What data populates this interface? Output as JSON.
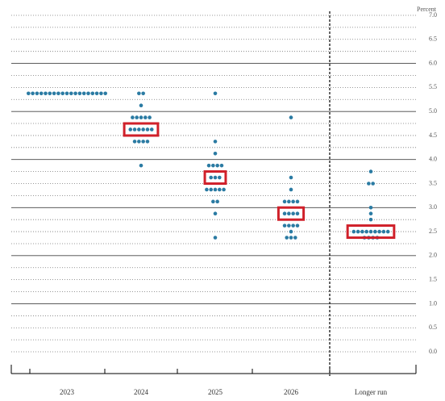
{
  "chart_data": {
    "type": "dot",
    "y_label": "Percent",
    "categories": [
      "2023",
      "2024",
      "2025",
      "2026",
      "Longer run"
    ],
    "dots": [
      [
        5.375,
        5.375,
        5.375,
        5.375,
        5.375,
        5.375,
        5.375,
        5.375,
        5.375,
        5.375,
        5.375,
        5.375,
        5.375,
        5.375,
        5.375,
        5.375,
        5.375,
        5.375,
        5.375
      ],
      [
        5.375,
        5.375,
        5.125,
        4.875,
        4.875,
        4.875,
        4.875,
        4.875,
        4.625,
        4.625,
        4.625,
        4.625,
        4.625,
        4.625,
        4.375,
        4.375,
        4.375,
        4.375,
        3.875
      ],
      [
        5.375,
        4.375,
        4.125,
        3.875,
        3.875,
        3.875,
        3.875,
        3.625,
        3.625,
        3.625,
        3.375,
        3.375,
        3.375,
        3.375,
        3.375,
        3.125,
        3.125,
        2.875,
        2.375
      ],
      [
        4.875,
        3.625,
        3.375,
        3.125,
        3.125,
        3.125,
        3.125,
        2.875,
        2.875,
        2.875,
        2.875,
        2.625,
        2.625,
        2.625,
        2.625,
        2.5,
        2.375,
        2.375,
        2.375
      ],
      [
        3.75,
        3.5,
        3.5,
        3.0,
        2.875,
        2.75,
        2.5,
        2.5,
        2.5,
        2.5,
        2.5,
        2.5,
        2.5,
        2.5,
        2.5,
        2.375,
        2.375,
        2.375,
        2.375
      ]
    ],
    "medians": [
      null,
      4.625,
      3.625,
      2.875,
      2.5
    ],
    "dot_color": "#2b7ba3",
    "median_color": "#d0202a",
    "ylim": [
      0,
      7
    ],
    "yticks": [
      {
        "value": 0,
        "label": "0.0"
      },
      {
        "value": 0.5,
        "label": "0.5"
      },
      {
        "value": 1,
        "label": "1.0"
      },
      {
        "value": 1.5,
        "label": "1.5"
      },
      {
        "value": 2,
        "label": "2.0"
      },
      {
        "value": 2.5,
        "label": "2.5"
      },
      {
        "value": 3,
        "label": "3.0"
      },
      {
        "value": 3.5,
        "label": "3.5"
      },
      {
        "value": 4,
        "label": "4.0"
      },
      {
        "value": 4.5,
        "label": "4.5"
      },
      {
        "value": 5,
        "label": "5.0"
      },
      {
        "value": 5.5,
        "label": "5.5"
      },
      {
        "value": 6,
        "label": "6.0"
      },
      {
        "value": 6.5,
        "label": "6.5"
      },
      {
        "value": 7,
        "label": "7.0"
      }
    ]
  }
}
